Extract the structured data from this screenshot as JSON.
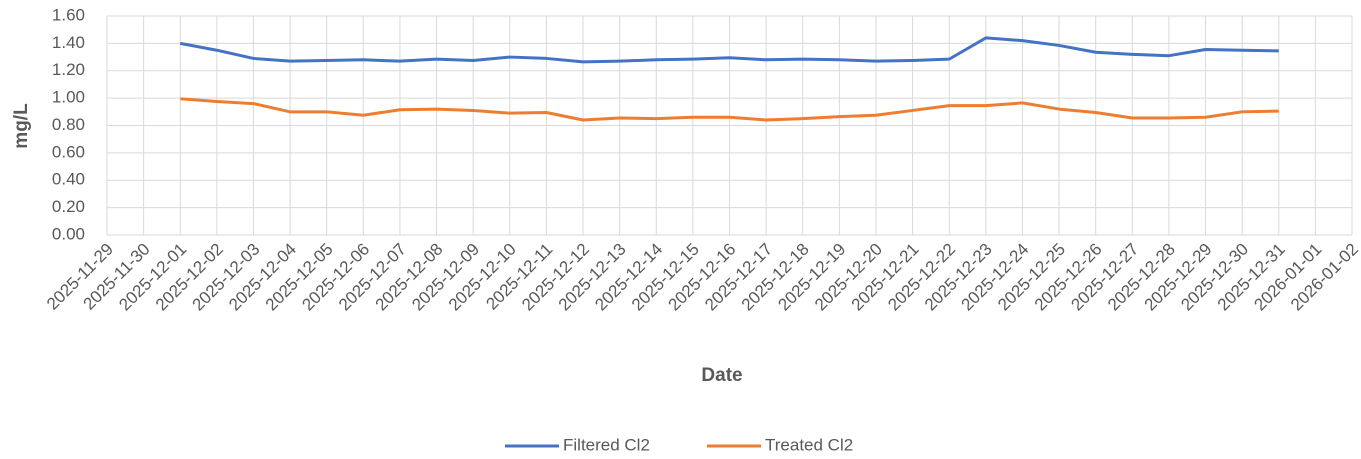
{
  "chart_data": {
    "type": "line",
    "x_label": "Date",
    "y_label": "mg/L",
    "categories": [
      "2025-11-29",
      "2025-11-30",
      "2025-12-01",
      "2025-12-02",
      "2025-12-03",
      "2025-12-04",
      "2025-12-05",
      "2025-12-06",
      "2025-12-07",
      "2025-12-08",
      "2025-12-09",
      "2025-12-10",
      "2025-12-11",
      "2025-12-12",
      "2025-12-13",
      "2025-12-14",
      "2025-12-15",
      "2025-12-16",
      "2025-12-17",
      "2025-12-18",
      "2025-12-19",
      "2025-12-20",
      "2025-12-21",
      "2025-12-22",
      "2025-12-23",
      "2025-12-24",
      "2025-12-25",
      "2025-12-26",
      "2025-12-27",
      "2025-12-28",
      "2025-12-29",
      "2025-12-30",
      "2025-12-31",
      "2026-01-01",
      "2026-01-02"
    ],
    "series": [
      {
        "name": "Filtered Cl2",
        "color": "#4472c4",
        "values": [
          null,
          null,
          1.4,
          1.35,
          1.29,
          1.27,
          1.275,
          1.28,
          1.27,
          1.285,
          1.275,
          1.3,
          1.29,
          1.265,
          1.27,
          1.28,
          1.285,
          1.295,
          1.28,
          1.285,
          1.28,
          1.27,
          1.275,
          1.285,
          1.44,
          1.42,
          1.385,
          1.335,
          1.32,
          1.31,
          1.355,
          1.35,
          1.345,
          null,
          null
        ]
      },
      {
        "name": "Treated Cl2",
        "color": "#ed7d31",
        "values": [
          null,
          null,
          0.995,
          0.975,
          0.96,
          0.9,
          0.9,
          0.875,
          0.915,
          0.92,
          0.91,
          0.89,
          0.895,
          0.84,
          0.855,
          0.85,
          0.86,
          0.86,
          0.84,
          0.85,
          0.865,
          0.875,
          0.91,
          0.945,
          0.945,
          0.965,
          0.92,
          0.895,
          0.855,
          0.855,
          0.86,
          0.9,
          0.905,
          null,
          null
        ]
      }
    ],
    "ylim": [
      0,
      1.6
    ],
    "yticks": [
      {
        "value": 0,
        "label": "0.00"
      },
      {
        "value": 0.2,
        "label": "0.20"
      },
      {
        "value": 0.4,
        "label": "0.40"
      },
      {
        "value": 0.6,
        "label": "0.60"
      },
      {
        "value": 0.8,
        "label": "0.80"
      },
      {
        "value": 1,
        "label": "1.00"
      },
      {
        "value": 1.2,
        "label": "1.20"
      },
      {
        "value": 1.4,
        "label": "1.40"
      },
      {
        "value": 1.6,
        "label": "1.60"
      }
    ],
    "grid": true,
    "legend": "bottom"
  }
}
